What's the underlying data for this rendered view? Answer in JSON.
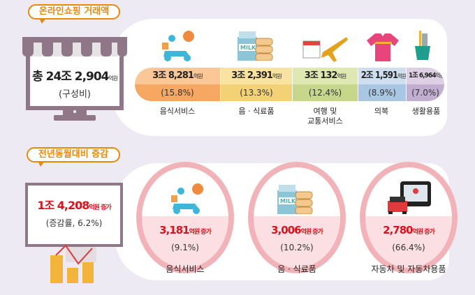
{
  "top": {
    "badge": "온라인쇼핑 거래액",
    "total_prefix": "총 ",
    "total_value": "24조 2,904",
    "total_unit": "억원",
    "total_sub": "(구성비)",
    "categories": [
      {
        "value": "3조 8,281",
        "unit": "억원",
        "pct": "(15.8%)",
        "label": "음식서비스",
        "icon": "delivery-scooter-icon",
        "color_top": "#fbc796",
        "color_bottom": "#f6a862"
      },
      {
        "value": "3조 2,391",
        "unit": "억원",
        "pct": "(13.3%)",
        "label": "음 · 식료품",
        "icon": "milk-bread-icon",
        "color_top": "#f8e4a0",
        "color_bottom": "#f2d275"
      },
      {
        "value": "3조 132",
        "unit": "억원",
        "pct": "(12.4%)",
        "label": "여행 및\n교통서비스",
        "icon": "calendar-airplane-icon",
        "color_top": "#dfe7b3",
        "color_bottom": "#c6d68b"
      },
      {
        "value": "2조 1,591",
        "unit": "억원",
        "pct": "(8.9%)",
        "label": "의복",
        "icon": "tshirt-icon",
        "color_top": "#cfdff0",
        "color_bottom": "#a9c6e3"
      },
      {
        "value": "1조 6,964",
        "unit": "억원",
        "pct": "(7.0%)",
        "label": "생활용품",
        "icon": "toothbrush-cup-icon",
        "color_top": "#ddd0e4",
        "color_bottom": "#c2aed0"
      }
    ]
  },
  "bottom": {
    "badge": "전년동월대비 증감",
    "total_value": "1조 4,208",
    "total_unit": "억원 증가",
    "total_sub": "(증감률, 6.2%)",
    "items": [
      {
        "value": "3,181",
        "unit": "억원 증가",
        "pct": "(9.1%)",
        "label": "음식서비스",
        "icon": "delivery-scooter-icon"
      },
      {
        "value": "3,006",
        "unit": "억원 증가",
        "pct": "(10.2%)",
        "label": "음 · 식료품",
        "icon": "milk-bread-icon"
      },
      {
        "value": "2,780",
        "unit": "억원 증가",
        "pct": "(66.4%)",
        "label": "자동차 및 자동차용품",
        "icon": "car-navigation-icon"
      }
    ]
  },
  "colors": {
    "accent": "#e8890c",
    "highlight": "#d8131e",
    "frame": "#8f7787"
  }
}
